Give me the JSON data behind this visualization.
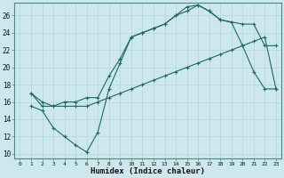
{
  "xlabel": "Humidex (Indice chaleur)",
  "bg_color": "#cce8ec",
  "grid_color": "#b8d8dc",
  "line_color": "#1a6b60",
  "xlim": [
    -0.5,
    23.5
  ],
  "ylim": [
    9.5,
    27.5
  ],
  "xticks": [
    0,
    1,
    2,
    3,
    4,
    5,
    6,
    7,
    8,
    9,
    10,
    11,
    12,
    13,
    14,
    15,
    16,
    17,
    18,
    19,
    20,
    21,
    22,
    23
  ],
  "yticks": [
    10,
    12,
    14,
    16,
    18,
    20,
    22,
    24,
    26
  ],
  "line1_x": [
    1,
    2,
    3,
    4,
    5,
    6,
    7,
    8,
    9,
    10,
    11,
    12,
    13,
    14,
    15,
    16,
    17,
    18,
    19,
    20,
    21,
    22,
    23
  ],
  "line1_y": [
    15.5,
    15,
    13,
    12,
    11,
    10.2,
    12.5,
    17.5,
    20.5,
    23.5,
    24.0,
    24.5,
    25.0,
    26.0,
    27.0,
    27.2,
    26.5,
    25.5,
    25.2,
    22.5,
    19.5,
    17.5,
    17.5
  ],
  "line1_markers": [
    1,
    2,
    3,
    4,
    5,
    6,
    7,
    8,
    9,
    10,
    11,
    12,
    13,
    14,
    15,
    16,
    17,
    18,
    19,
    20,
    21,
    22,
    23
  ],
  "line2_x": [
    1,
    23
  ],
  "line2_y": [
    17.0,
    17.5
  ],
  "line2_full_x": [
    1,
    2,
    3,
    4,
    5,
    6,
    7,
    8,
    9,
    10,
    11,
    12,
    13,
    14,
    15,
    16,
    17,
    18,
    19,
    20,
    21,
    22,
    23
  ],
  "line2_full_y": [
    17.0,
    16.0,
    15.5,
    15.5,
    15.5,
    15.5,
    16.0,
    16.5,
    17.0,
    17.5,
    18.0,
    18.5,
    19.0,
    19.5,
    20.0,
    20.5,
    21.0,
    21.5,
    22.0,
    22.5,
    23.0,
    23.5,
    17.5
  ],
  "line3_x": [
    1,
    2,
    3,
    4,
    5,
    6,
    7,
    8,
    9,
    10,
    11,
    12,
    13,
    14,
    15,
    16,
    17,
    18,
    20,
    21,
    22,
    23
  ],
  "line3_y": [
    17.0,
    15.5,
    15.5,
    16.0,
    16.0,
    16.5,
    16.5,
    19.0,
    21.0,
    23.5,
    24.0,
    24.5,
    25.0,
    26.0,
    26.5,
    27.2,
    26.5,
    25.5,
    25.0,
    25.0,
    22.5,
    22.5
  ],
  "line3_markers_x": [
    1,
    2,
    3,
    4,
    5,
    6,
    7,
    8,
    9,
    10,
    11,
    12,
    13,
    14,
    15,
    16,
    17,
    18,
    20,
    21,
    22,
    23
  ],
  "line3_markers_y": [
    17.0,
    15.5,
    15.5,
    16.0,
    16.0,
    16.5,
    16.5,
    19.0,
    21.0,
    23.5,
    24.0,
    24.5,
    25.0,
    26.0,
    26.5,
    27.2,
    26.5,
    25.5,
    25.0,
    25.0,
    22.5,
    22.5
  ]
}
